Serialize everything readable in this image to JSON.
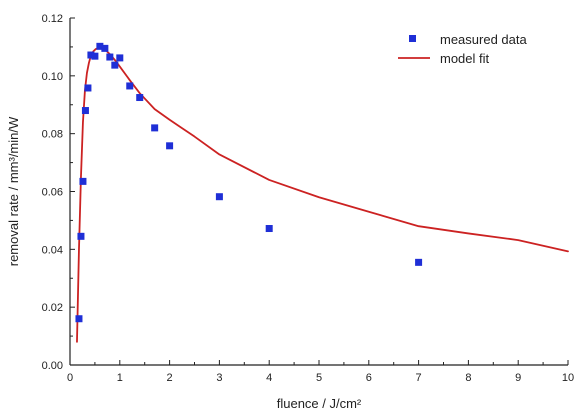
{
  "chart_data": {
    "type": "scatter",
    "xlabel": "fluence / J/cm²",
    "ylabel": "removal rate / mm³/min/W",
    "xlim": [
      0,
      10
    ],
    "ylim": [
      0,
      0.12
    ],
    "xticks": [
      0,
      1,
      2,
      3,
      4,
      5,
      6,
      7,
      8,
      9,
      10
    ],
    "yticks": [
      0.0,
      0.02,
      0.04,
      0.06,
      0.08,
      0.1,
      0.12
    ],
    "xtick_labels": [
      "0",
      "1",
      "2",
      "3",
      "4",
      "5",
      "6",
      "7",
      "8",
      "9",
      "10"
    ],
    "ytick_labels": [
      "0.00",
      "0.02",
      "0.04",
      "0.06",
      "0.08",
      "0.10",
      "0.12"
    ],
    "grid": false,
    "legend_position": "top-right",
    "series": [
      {
        "name": "measured data",
        "kind": "scatter",
        "marker": "square",
        "color": "#1f2fd6",
        "x": [
          0.18,
          0.22,
          0.26,
          0.31,
          0.36,
          0.42,
          0.5,
          0.6,
          0.7,
          0.8,
          0.9,
          1.0,
          1.2,
          1.4,
          1.7,
          2.0,
          3.0,
          4.0,
          7.0
        ],
        "y": [
          0.016,
          0.0445,
          0.0635,
          0.088,
          0.0958,
          0.1072,
          0.1068,
          0.1102,
          0.1095,
          0.1065,
          0.1037,
          0.1062,
          0.0965,
          0.0925,
          0.082,
          0.0758,
          0.0582,
          0.0472,
          0.0355
        ]
      },
      {
        "name": "model fit",
        "kind": "line",
        "color": "#cc2222",
        "x": [
          0.14,
          0.18,
          0.22,
          0.26,
          0.3,
          0.34,
          0.38,
          0.42,
          0.47,
          0.52,
          0.58,
          0.65,
          0.72,
          0.8,
          0.9,
          1.0,
          1.2,
          1.4,
          1.7,
          2.0,
          2.5,
          3.0,
          4.0,
          5.0,
          6.0,
          7.0,
          8.0,
          9.0,
          10.0
        ],
        "y": [
          0.008,
          0.04,
          0.065,
          0.084,
          0.095,
          0.101,
          0.1045,
          0.107,
          0.1085,
          0.1093,
          0.1097,
          0.1095,
          0.1088,
          0.1075,
          0.1055,
          0.1032,
          0.0985,
          0.094,
          0.0885,
          0.0848,
          0.079,
          0.0728,
          0.064,
          0.058,
          0.053,
          0.048,
          0.0455,
          0.0432,
          0.0393
        ]
      }
    ]
  }
}
